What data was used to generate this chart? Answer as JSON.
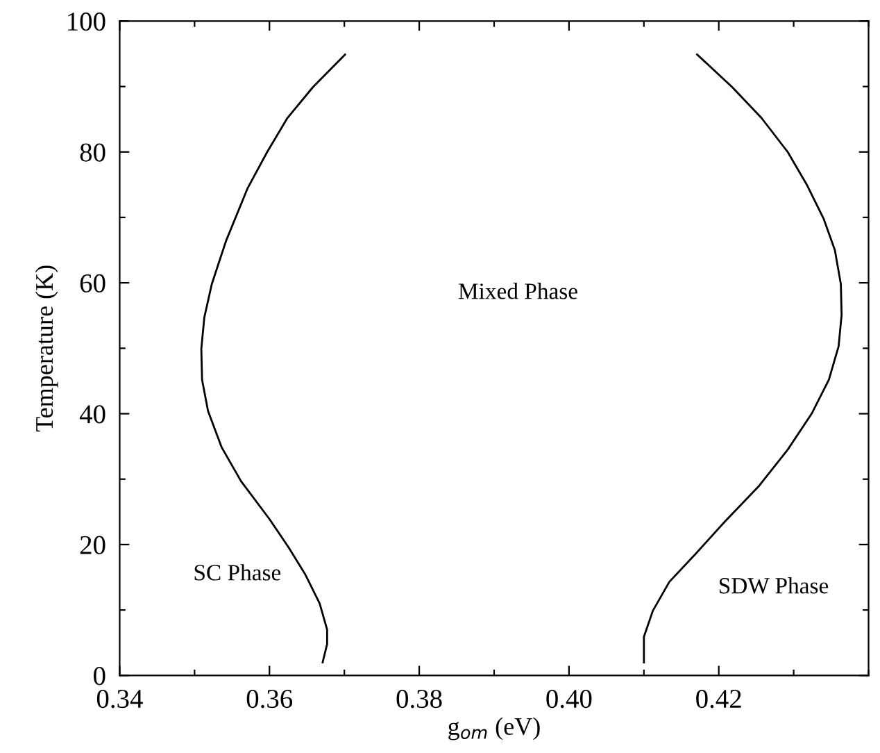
{
  "chart_data": {
    "type": "line",
    "xlabel": "g$_{om}$ (eV)",
    "ylabel": "Temperature (K)",
    "xlim": [
      0.34,
      0.44
    ],
    "ylim": [
      0,
      100
    ],
    "xticks": [
      {
        "value": 0.34,
        "label": "0.34"
      },
      {
        "value": 0.35,
        "label": null
      },
      {
        "value": 0.36,
        "label": "0.36"
      },
      {
        "value": 0.37,
        "label": null
      },
      {
        "value": 0.38,
        "label": "0.38"
      },
      {
        "value": 0.39,
        "label": null
      },
      {
        "value": 0.4,
        "label": "0.40"
      },
      {
        "value": 0.41,
        "label": null
      },
      {
        "value": 0.42,
        "label": "0.42"
      },
      {
        "value": 0.43,
        "label": null
      },
      {
        "value": 0.44,
        "label": null
      }
    ],
    "yticks": [
      0,
      {
        "value": 10,
        "label": null
      },
      20,
      {
        "value": 30,
        "label": null
      },
      40,
      {
        "value": 50,
        "label": null
      },
      60,
      {
        "value": 70,
        "label": null
      },
      80,
      {
        "value": 90,
        "label": null
      },
      100
    ],
    "grid": false,
    "legend": false,
    "marker": "none",
    "line_style": "solid",
    "series": [
      {
        "color": "#000000",
        "x": [
          0.3671,
          0.3677,
          0.3677,
          0.3667,
          0.3648,
          0.3626,
          0.36,
          0.3562,
          0.3536,
          0.3518,
          0.351,
          0.3509,
          0.3513,
          0.3523,
          0.3542,
          0.3571,
          0.3597,
          0.3624,
          0.3658,
          0.3701
        ],
        "values": [
          2.0,
          4.8,
          7.0,
          11.0,
          15.4,
          19.5,
          23.9,
          29.7,
          34.9,
          40.4,
          45.2,
          49.9,
          54.7,
          59.8,
          66.4,
          74.5,
          80.0,
          85.2,
          89.9,
          94.9
        ]
      },
      {
        "color": "#000000",
        "x": [
          0.41,
          0.41,
          0.4112,
          0.4134,
          0.417,
          0.4208,
          0.4254,
          0.4292,
          0.4324,
          0.4347,
          0.436,
          0.4364,
          0.4363,
          0.4355,
          0.434,
          0.4318,
          0.4292,
          0.4257,
          0.4218,
          0.4171
        ],
        "values": [
          2.0,
          5.9,
          9.9,
          14.3,
          18.7,
          23.5,
          29.0,
          34.5,
          40.0,
          45.2,
          50.3,
          55.1,
          59.8,
          65.0,
          69.8,
          74.9,
          80.0,
          85.2,
          89.9,
          94.9
        ]
      }
    ],
    "annotations": [
      "Mixed Phase",
      "SC Phase",
      "SDW Phase"
    ]
  }
}
